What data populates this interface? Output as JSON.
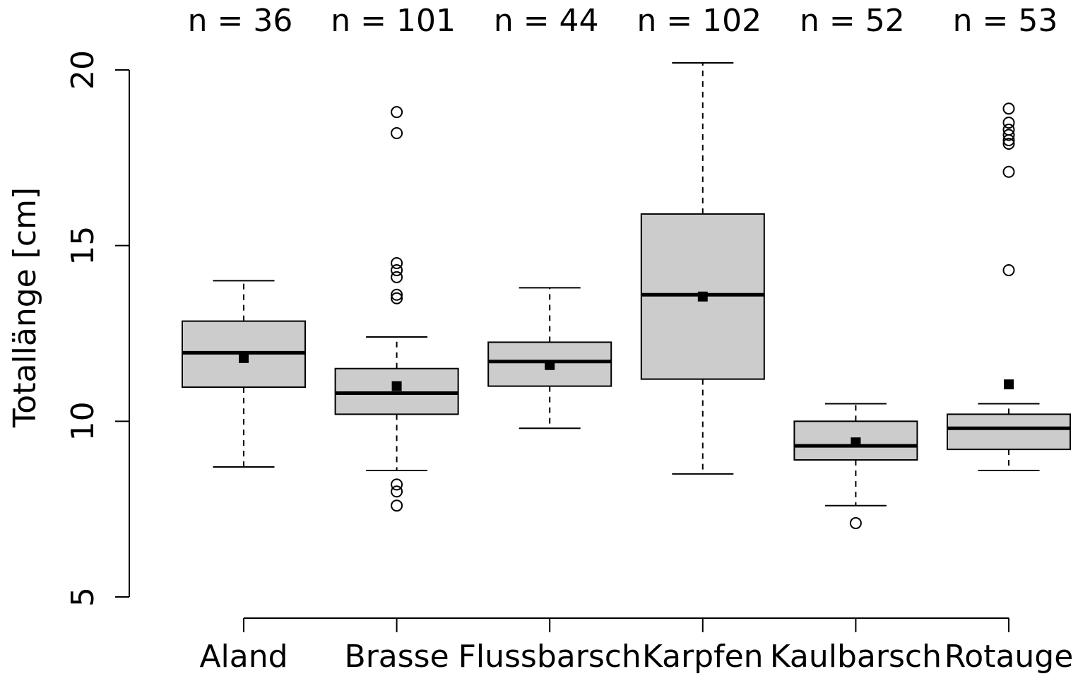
{
  "chart_data": {
    "type": "box",
    "y_label": "Totallänge [cm]",
    "categories": [
      "Aland",
      "Brasse",
      "Flussbarsch",
      "Karpfen",
      "Kaulbarsch",
      "Rotauge"
    ],
    "n_labels": [
      "n = 36",
      "n = 101",
      "n = 44",
      "n = 102",
      "n = 52",
      "n = 53"
    ],
    "whisker_low": [
      8.7,
      8.6,
      9.8,
      8.5,
      7.6,
      8.6
    ],
    "q1": [
      10.97,
      10.2,
      11.0,
      11.2,
      8.9,
      9.2
    ],
    "median": [
      11.95,
      10.8,
      11.7,
      13.6,
      9.3,
      9.8
    ],
    "q3": [
      12.85,
      11.5,
      12.25,
      15.9,
      10.0,
      10.2
    ],
    "whisker_high": [
      14.0,
      12.4,
      13.8,
      20.2,
      10.5,
      10.5
    ],
    "means": [
      11.8,
      11.0,
      11.6,
      13.55,
      9.4,
      11.05
    ],
    "outliers": [
      [],
      [
        18.8,
        18.2,
        14.5,
        14.3,
        14.1,
        13.6,
        13.5,
        8.2,
        8.0,
        7.6
      ],
      [],
      [],
      [
        7.1
      ],
      [
        18.9,
        18.5,
        18.3,
        18.15,
        18.0,
        17.9,
        17.1,
        14.3
      ]
    ],
    "color": "#cccccc",
    "ylim": [
      5,
      20
    ],
    "yticks": [
      5,
      10,
      15,
      20
    ]
  }
}
